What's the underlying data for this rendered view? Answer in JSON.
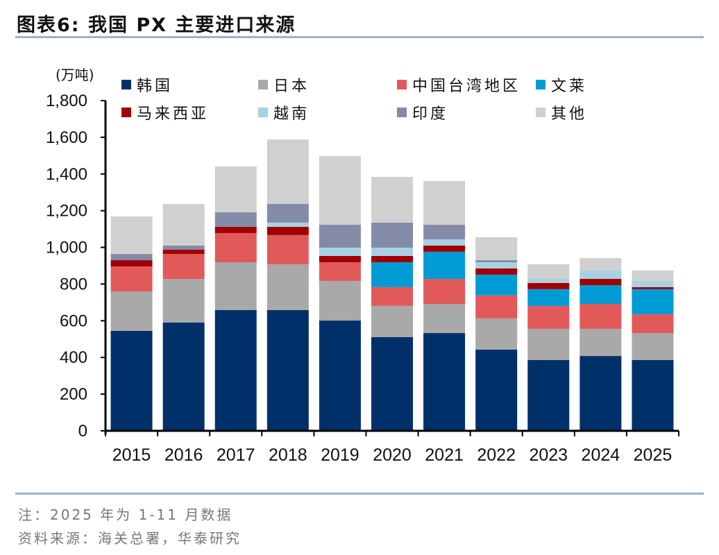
{
  "header": {
    "title": "图表6:  我国 PX 主要进口来源"
  },
  "footer": {
    "note": "注：2025 年为 1-11 月数据",
    "source": "资料来源：海关总署，华泰研究"
  },
  "chart_data": {
    "type": "bar",
    "stacked": true,
    "title": "我国 PX 主要进口来源",
    "ylabel": "(万吨)",
    "xlabel": "",
    "ylim": [
      0,
      1800
    ],
    "yticks": [
      0,
      200,
      400,
      600,
      800,
      1000,
      1200,
      1400,
      1600,
      1800
    ],
    "ytick_labels": [
      "0",
      "200",
      "400",
      "600",
      "800",
      "1,000",
      "1,200",
      "1,400",
      "1,600",
      "1,800"
    ],
    "grid": false,
    "legend_position": "top",
    "categories": [
      "2015",
      "2016",
      "2017",
      "2018",
      "2019",
      "2020",
      "2021",
      "2022",
      "2023",
      "2024",
      "2025"
    ],
    "series": [
      {
        "name": "韩国",
        "color": "#003069",
        "values": [
          545,
          590,
          658,
          658,
          601,
          511,
          533,
          443,
          386,
          408,
          386
        ]
      },
      {
        "name": "日本",
        "color": "#a9a9a9",
        "values": [
          215,
          238,
          261,
          250,
          216,
          170,
          159,
          170,
          170,
          148,
          147
        ]
      },
      {
        "name": "中国台湾地区",
        "color": "#e2595a",
        "values": [
          136,
          136,
          159,
          159,
          102,
          102,
          136,
          125,
          125,
          136,
          102
        ]
      },
      {
        "name": "文莱",
        "color": "#009bd4",
        "values": [
          0,
          0,
          0,
          0,
          0,
          136,
          148,
          113,
          91,
          102,
          137
        ]
      },
      {
        "name": "马来西亚",
        "color": "#a00000",
        "values": [
          34,
          23,
          34,
          45,
          34,
          34,
          34,
          34,
          34,
          34,
          11
        ]
      },
      {
        "name": "越南",
        "color": "#a9d1e1",
        "values": [
          0,
          0,
          0,
          23,
          45,
          45,
          34,
          34,
          22,
          46,
          34
        ]
      },
      {
        "name": "印度",
        "color": "#838ba7",
        "values": [
          34,
          23,
          79,
          102,
          125,
          137,
          79,
          11,
          0,
          0,
          0
        ]
      },
      {
        "name": "其他",
        "color": "#d0d0d0",
        "values": [
          205,
          227,
          250,
          351,
          375,
          249,
          239,
          125,
          80,
          68,
          57
        ]
      }
    ]
  }
}
